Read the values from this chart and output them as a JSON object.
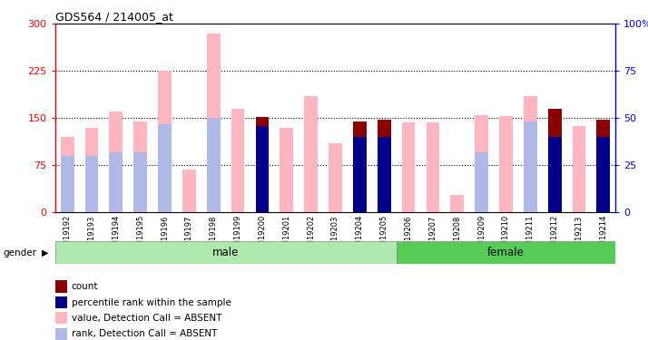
{
  "title": "GDS564 / 214005_at",
  "samples": [
    "GSM19192",
    "GSM19193",
    "GSM19194",
    "GSM19195",
    "GSM19196",
    "GSM19197",
    "GSM19198",
    "GSM19199",
    "GSM19200",
    "GSM19201",
    "GSM19202",
    "GSM19203",
    "GSM19204",
    "GSM19205",
    "GSM19206",
    "GSM19207",
    "GSM19208",
    "GSM19209",
    "GSM19210",
    "GSM19211",
    "GSM19212",
    "GSM19213",
    "GSM19214"
  ],
  "value_absent": [
    120,
    135,
    160,
    145,
    225,
    68,
    285,
    165,
    0,
    135,
    185,
    110,
    0,
    0,
    143,
    143,
    28,
    155,
    153,
    185,
    0,
    138,
    0
  ],
  "rank_absent_pct": [
    30,
    30,
    32,
    32,
    47,
    0,
    50,
    0,
    0,
    0,
    0,
    0,
    0,
    0,
    0,
    0,
    0,
    32,
    0,
    48,
    0,
    0,
    0
  ],
  "count": [
    0,
    0,
    0,
    0,
    0,
    0,
    0,
    0,
    152,
    0,
    0,
    0,
    145,
    147,
    0,
    0,
    0,
    0,
    0,
    0,
    165,
    0,
    147
  ],
  "percentile_pct": [
    0,
    0,
    0,
    0,
    0,
    0,
    0,
    0,
    46,
    0,
    0,
    0,
    40,
    40,
    0,
    0,
    0,
    0,
    0,
    0,
    40,
    0,
    40
  ],
  "gender": [
    "male",
    "male",
    "male",
    "male",
    "male",
    "male",
    "male",
    "male",
    "male",
    "male",
    "male",
    "male",
    "male",
    "male",
    "female",
    "female",
    "female",
    "female",
    "female",
    "female",
    "female",
    "female",
    "female"
  ],
  "left_ylim": [
    0,
    300
  ],
  "right_ylim": [
    0,
    100
  ],
  "left_yticks": [
    0,
    75,
    150,
    225,
    300
  ],
  "right_yticks": [
    0,
    25,
    50,
    75,
    100
  ],
  "left_ytick_labels": [
    "0",
    "75",
    "150",
    "225",
    "300"
  ],
  "right_ytick_labels": [
    "0",
    "25",
    "50",
    "75",
    "100%"
  ],
  "color_count": "#8B0000",
  "color_percentile": "#00008B",
  "color_value_absent": "#FFB6C1",
  "color_rank_absent": "#B0B8E8",
  "color_male_bg": "#AEEAAE",
  "color_female_bg": "#55CC55",
  "bar_width": 0.55,
  "legend_items": [
    {
      "color": "#8B0000",
      "label": "count"
    },
    {
      "color": "#00008B",
      "label": "percentile rank within the sample"
    },
    {
      "color": "#FFB6C1",
      "label": "value, Detection Call = ABSENT"
    },
    {
      "color": "#B0B8E8",
      "label": "rank, Detection Call = ABSENT"
    }
  ]
}
